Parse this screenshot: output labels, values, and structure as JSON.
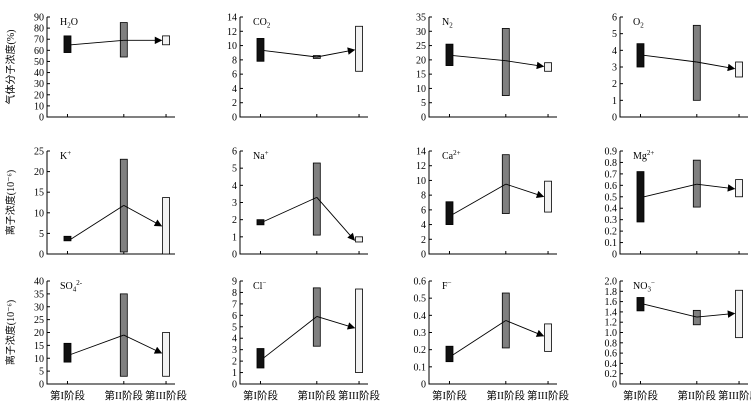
{
  "chart_data": {
    "type": "range-bar-with-mean-arrows",
    "x_categories": [
      "第I阶段",
      "第II阶段",
      "第III阶段"
    ],
    "row_ylabels": [
      "气体分子浓度(%)",
      "离子浓度(10⁻⁶)",
      "离子浓度(10⁻⁶)"
    ],
    "colors": {
      "stage1": "#111111",
      "stage2": "#808080",
      "stage3": "#f2f2f2"
    },
    "panels": [
      {
        "title_base": "H",
        "title_sub": "2",
        "title_end": "O",
        "title_sup": "",
        "ylim": [
          0,
          90
        ],
        "ticks": [
          "0",
          "10",
          "20",
          "30",
          "40",
          "50",
          "60",
          "70",
          "80",
          "90"
        ],
        "ranges": [
          [
            58,
            73
          ],
          [
            54,
            85
          ],
          [
            65,
            73
          ]
        ],
        "means": [
          65,
          69,
          69
        ]
      },
      {
        "title_base": "CO",
        "title_sub": "2",
        "title_end": "",
        "title_sup": "",
        "ylim": [
          0,
          14
        ],
        "ticks": [
          "0",
          "2",
          "4",
          "6",
          "8",
          "10",
          "12",
          "14"
        ],
        "ranges": [
          [
            7.8,
            11
          ],
          [
            8.2,
            8.6
          ],
          [
            6.4,
            12.7
          ]
        ],
        "means": [
          9.3,
          8.4,
          9.4
        ]
      },
      {
        "title_base": "N",
        "title_sub": "2",
        "title_end": "",
        "title_sup": "",
        "ylim": [
          0,
          35
        ],
        "ticks": [
          "0",
          "5",
          "10",
          "15",
          "20",
          "25",
          "30",
          "35"
        ],
        "ranges": [
          [
            18,
            25.5
          ],
          [
            7.5,
            31
          ],
          [
            16,
            19
          ]
        ],
        "means": [
          21.5,
          19.7,
          17.7
        ]
      },
      {
        "title_base": "O",
        "title_sub": "2",
        "title_end": "",
        "title_sup": "",
        "ylim": [
          0,
          6
        ],
        "ticks": [
          "0",
          "1",
          "2",
          "3",
          "4",
          "5",
          "6"
        ],
        "ranges": [
          [
            3,
            4.4
          ],
          [
            1,
            5.5
          ],
          [
            2.4,
            3.3
          ]
        ],
        "means": [
          3.7,
          3.3,
          2.9
        ]
      },
      {
        "title_base": "K",
        "title_sub": "",
        "title_end": "",
        "title_sup": "+",
        "ylim": [
          0,
          25
        ],
        "ticks": [
          "0",
          "5",
          "10",
          "15",
          "20",
          "25"
        ],
        "ranges": [
          [
            3.2,
            4.3
          ],
          [
            0.5,
            23
          ],
          [
            0,
            13.7
          ]
        ],
        "means": [
          3.6,
          11.8,
          6.8
        ]
      },
      {
        "title_base": "Na",
        "title_sub": "",
        "title_end": "",
        "title_sup": "+",
        "ylim": [
          0,
          6
        ],
        "ticks": [
          "0",
          "1",
          "2",
          "3",
          "4",
          "5",
          "6"
        ],
        "ranges": [
          [
            1.7,
            2
          ],
          [
            1.1,
            5.3
          ],
          [
            0.7,
            1
          ]
        ],
        "means": [
          1.9,
          3.3,
          0.8
        ]
      },
      {
        "title_base": "Ca",
        "title_sub": "",
        "title_end": "",
        "title_sup": "2+",
        "ylim": [
          0,
          14
        ],
        "ticks": [
          "0",
          "2",
          "4",
          "6",
          "8",
          "10",
          "12",
          "14"
        ],
        "ranges": [
          [
            4,
            7.1
          ],
          [
            5.5,
            13.5
          ],
          [
            5.7,
            9.9
          ]
        ],
        "means": [
          5.4,
          9.5,
          7.8
        ]
      },
      {
        "title_base": "Mg",
        "title_sub": "",
        "title_end": "",
        "title_sup": "2+",
        "ylim": [
          0,
          0.9
        ],
        "ticks": [
          "0",
          "0.1",
          "0.2",
          "0.3",
          "0.4",
          "0.5",
          "0.6",
          "0.7",
          "0.8",
          "0.9"
        ],
        "ranges": [
          [
            0.28,
            0.72
          ],
          [
            0.41,
            0.82
          ],
          [
            0.5,
            0.65
          ]
        ],
        "means": [
          0.5,
          0.61,
          0.57
        ]
      },
      {
        "title_base": "SO",
        "title_sub": "4",
        "title_end": "",
        "title_sup": "2-",
        "ylim": [
          0,
          40
        ],
        "ticks": [
          "0",
          "5",
          "10",
          "15",
          "20",
          "25",
          "30",
          "35",
          "40"
        ],
        "ranges": [
          [
            8.5,
            15.8
          ],
          [
            3,
            35
          ],
          [
            3,
            20
          ]
        ],
        "means": [
          11.5,
          19,
          12
        ]
      },
      {
        "title_base": "Cl",
        "title_sub": "",
        "title_end": "",
        "title_sup": "−",
        "ylim": [
          0,
          9
        ],
        "ticks": [
          "0",
          "1",
          "2",
          "3",
          "4",
          "5",
          "6",
          "7",
          "8",
          "9"
        ],
        "ranges": [
          [
            1.4,
            3.1
          ],
          [
            3.3,
            8.4
          ],
          [
            1,
            8.3
          ]
        ],
        "means": [
          2.3,
          5.9,
          4.9
        ]
      },
      {
        "title_base": "F",
        "title_sub": "",
        "title_end": "",
        "title_sup": "−",
        "ylim": [
          0,
          0.6
        ],
        "ticks": [
          "0",
          "0.1",
          "0.2",
          "0.3",
          "0.4",
          "0.5",
          "0.6"
        ],
        "ranges": [
          [
            0.13,
            0.22
          ],
          [
            0.21,
            0.53
          ],
          [
            0.19,
            0.35
          ]
        ],
        "means": [
          0.17,
          0.37,
          0.28
        ]
      },
      {
        "title_base": "NO",
        "title_sub": "3",
        "title_end": "",
        "title_sup": "−",
        "ylim": [
          0,
          2
        ],
        "ticks": [
          "0",
          "0.2",
          "0.4",
          "0.6",
          "0.8",
          "1.0",
          "1.2",
          "1.4",
          "1.6",
          "1.8",
          "2.0"
        ],
        "ranges": [
          [
            1.42,
            1.68
          ],
          [
            1.15,
            1.43
          ],
          [
            0.9,
            1.82
          ]
        ],
        "means": [
          1.55,
          1.3,
          1.37
        ]
      }
    ]
  }
}
